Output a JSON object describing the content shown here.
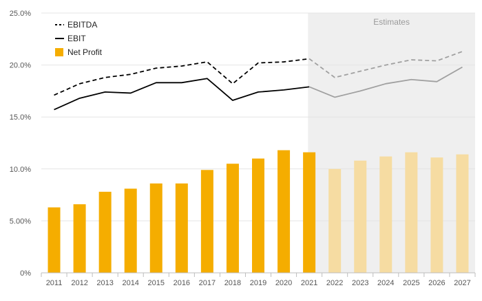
{
  "chart_data": {
    "type": "bar",
    "categories": [
      "2011",
      "2012",
      "2013",
      "2014",
      "2015",
      "2016",
      "2017",
      "2018",
      "2019",
      "2020",
      "2021",
      "2022",
      "2023",
      "2024",
      "2025",
      "2026",
      "2027"
    ],
    "estimates_from": "2022",
    "estimates_label": "Estimates",
    "y_ticks": [
      "0%",
      "5.00%",
      "10.0%",
      "15.0%",
      "20.0%",
      "25.0%"
    ],
    "ylim": [
      0,
      25
    ],
    "grid": true,
    "legend_position": "top-left",
    "series": [
      {
        "name": "EBITDA",
        "kind": "line-dashed",
        "values": [
          17.1,
          18.2,
          18.8,
          19.1,
          19.7,
          19.9,
          20.3,
          18.2,
          20.2,
          20.3,
          20.6,
          18.8,
          19.4,
          20.0,
          20.5,
          20.4,
          21.3
        ]
      },
      {
        "name": "EBIT",
        "kind": "line",
        "values": [
          15.7,
          16.8,
          17.4,
          17.3,
          18.3,
          18.3,
          18.7,
          16.6,
          17.4,
          17.6,
          17.9,
          16.9,
          17.5,
          18.2,
          18.6,
          18.4,
          19.8
        ]
      },
      {
        "name": "Net Profit",
        "kind": "bar",
        "values": [
          6.3,
          6.6,
          7.8,
          8.1,
          8.6,
          8.6,
          9.9,
          10.5,
          11.0,
          11.8,
          11.6,
          10.0,
          10.8,
          11.2,
          11.6,
          11.1,
          11.4
        ]
      }
    ],
    "colors": {
      "bar": "#f5ad00",
      "bar_estimate": "#f6dca2",
      "line": "#000000",
      "line_estimate": "#a0a0a0",
      "estimate_bg": "#efefef",
      "grid": "#e4e4e4",
      "text": "#555555",
      "estimates_text": "#9a9a9a"
    }
  }
}
